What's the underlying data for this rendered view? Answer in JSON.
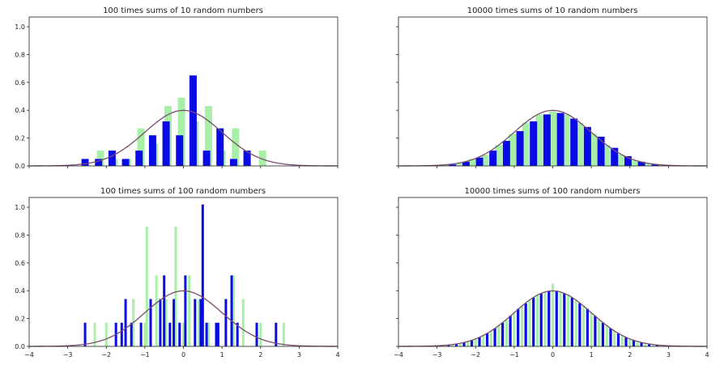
{
  "chart_data": [
    {
      "type": "bar",
      "title": "100 times sums of 10 random numbers",
      "xlabel": "",
      "ylabel": "",
      "xlim": [
        -4,
        4
      ],
      "ylim": [
        0,
        1.07
      ],
      "xticks": [
        -4,
        -3,
        -2,
        -1,
        0,
        1,
        2,
        3,
        4
      ],
      "yticks": [
        "0.0",
        "0.2",
        "0.4",
        "0.6",
        "0.8",
        "1.0"
      ],
      "show_x_ticklabels": false,
      "show_y_ticklabels": true,
      "grid": false,
      "colors": {
        "histogram_a": "#a8f0a8",
        "histogram_b": "#0a0ae6",
        "curve": "#7a4d6e"
      },
      "series": [
        {
          "x": [
            -2.5,
            -2.15,
            -1.8,
            -1.45,
            -1.1,
            -0.75,
            -0.4,
            -0.05,
            0.3,
            0.65,
            1.0,
            1.35,
            1.7,
            2.05
          ],
          "values": [
            0,
            0.11,
            0.05,
            0.05,
            0.27,
            0.16,
            0.43,
            0.49,
            0.32,
            0.43,
            0.11,
            0.27,
            0,
            0.11
          ]
        },
        {
          "x": [
            -2.55,
            -2.2,
            -1.85,
            -1.5,
            -1.15,
            -0.8,
            -0.45,
            -0.1,
            0.25,
            0.6,
            0.95,
            1.3,
            1.65,
            2.0
          ],
          "values": [
            0.05,
            0.05,
            0.11,
            0.05,
            0.11,
            0.22,
            0.32,
            0.22,
            0.65,
            0.11,
            0.27,
            0.05,
            0.11,
            0
          ]
        }
      ],
      "curve": {
        "type": "normal_pdf",
        "mean": 0,
        "sd": 1
      }
    },
    {
      "type": "bar",
      "title": "10000 times sums of 10 random numbers",
      "xlabel": "",
      "ylabel": "",
      "xlim": [
        -4,
        4
      ],
      "ylim": [
        0,
        1.07
      ],
      "xticks": [
        -4,
        -3,
        -2,
        -1,
        0,
        1,
        2,
        3,
        4
      ],
      "yticks": [
        "0.0",
        "0.2",
        "0.4",
        "0.6",
        "0.8",
        "1.0"
      ],
      "show_x_ticklabels": false,
      "show_y_ticklabels": false,
      "grid": false,
      "colors": {
        "histogram_a": "#a8f0a8",
        "histogram_b": "#0a0ae6",
        "curve": "#7a4d6e"
      },
      "series": [
        {
          "x": [
            -2.8,
            -2.45,
            -2.1,
            -1.75,
            -1.4,
            -1.05,
            -0.7,
            -0.35,
            0.0,
            0.35,
            0.7,
            1.05,
            1.4,
            1.75,
            2.1,
            2.45,
            2.8
          ],
          "values": [
            0.01,
            0.02,
            0.05,
            0.08,
            0.15,
            0.23,
            0.31,
            0.37,
            0.39,
            0.37,
            0.31,
            0.23,
            0.15,
            0.08,
            0.04,
            0.02,
            0.01
          ]
        },
        {
          "x": [
            -2.6,
            -2.25,
            -1.9,
            -1.55,
            -1.2,
            -0.85,
            -0.5,
            -0.15,
            0.2,
            0.55,
            0.9,
            1.25,
            1.6,
            1.95,
            2.3,
            2.65,
            3.0
          ],
          "values": [
            0.01,
            0.03,
            0.06,
            0.11,
            0.18,
            0.25,
            0.32,
            0.37,
            0.38,
            0.34,
            0.28,
            0.21,
            0.13,
            0.07,
            0.03,
            0.01,
            0.005
          ]
        }
      ],
      "curve": {
        "type": "normal_pdf",
        "mean": 0,
        "sd": 1
      }
    },
    {
      "type": "bar",
      "title": "100 times sums of 100 random numbers",
      "xlabel": "",
      "ylabel": "",
      "xlim": [
        -4,
        4
      ],
      "ylim": [
        0,
        1.07
      ],
      "xticks": [
        -4,
        -3,
        -2,
        -1,
        0,
        1,
        2,
        3,
        4
      ],
      "xticklabels": [
        "−4",
        "−3",
        "−2",
        "−1",
        "0",
        "1",
        "2",
        "3",
        "4"
      ],
      "yticks": [
        "0.0",
        "0.2",
        "0.4",
        "0.6",
        "0.8",
        "1.0"
      ],
      "show_x_ticklabels": true,
      "show_y_ticklabels": true,
      "grid": false,
      "colors": {
        "histogram_a": "#a8f0a8",
        "histogram_b": "#0a0ae6",
        "curve": "#7a4d6e"
      },
      "series": [
        {
          "x": [
            -2.3,
            -2.0,
            -1.5,
            -1.3,
            -1.0,
            -0.95,
            -0.7,
            -0.45,
            -0.2,
            0.0,
            0.15,
            0.4,
            0.65,
            0.9,
            1.1,
            1.3,
            1.55,
            2.0,
            2.6
          ],
          "values": [
            0.17,
            0.17,
            0.17,
            0.34,
            0.17,
            0.86,
            0.51,
            0.34,
            0.86,
            0.17,
            0.51,
            0.34,
            0.17,
            0.17,
            0.17,
            0.51,
            0.34,
            0.17,
            0.17
          ]
        },
        {
          "x": [
            -2.55,
            -1.75,
            -1.6,
            -1.5,
            -1.35,
            -1.1,
            -0.85,
            -0.6,
            -0.5,
            -0.35,
            -0.25,
            -0.1,
            0.05,
            0.3,
            0.45,
            0.5,
            0.6,
            0.85,
            0.9,
            1.1,
            1.25,
            1.4,
            1.9,
            2.4
          ],
          "values": [
            0.17,
            0.17,
            0.17,
            0.34,
            0.17,
            0.17,
            0.34,
            0.34,
            0.51,
            0.17,
            0.34,
            0.17,
            0.51,
            0.34,
            0.34,
            1.02,
            0.17,
            0.17,
            0.17,
            0.34,
            0.51,
            0.17,
            0.17,
            0.17
          ]
        }
      ],
      "curve": {
        "type": "normal_pdf",
        "mean": 0,
        "sd": 1
      }
    },
    {
      "type": "bar",
      "title": "10000 times sums of 100 random numbers",
      "xlabel": "",
      "ylabel": "",
      "xlim": [
        -4,
        4
      ],
      "ylim": [
        0,
        1.07
      ],
      "xticks": [
        -4,
        -3,
        -2,
        -1,
        0,
        1,
        2,
        3,
        4
      ],
      "xticklabels": [
        "−4",
        "−3",
        "−2",
        "−1",
        "0",
        "1",
        "2",
        "3",
        "4"
      ],
      "yticks": [
        "0.0",
        "0.2",
        "0.4",
        "0.6",
        "0.8",
        "1.0"
      ],
      "show_x_ticklabels": true,
      "show_y_ticklabels": false,
      "grid": false,
      "colors": {
        "histogram_a": "#a8f0a8",
        "histogram_b": "#0a0ae6",
        "curve": "#7a4d6e"
      },
      "series": [
        {
          "x": [
            -3.0,
            -2.8,
            -2.6,
            -2.4,
            -2.2,
            -2.0,
            -1.8,
            -1.6,
            -1.4,
            -1.2,
            -1.0,
            -0.8,
            -0.6,
            -0.4,
            -0.2,
            0.0,
            0.2,
            0.4,
            0.6,
            0.8,
            1.0,
            1.2,
            1.4,
            1.6,
            1.8,
            2.0,
            2.2,
            2.4,
            2.6,
            2.8,
            3.0
          ],
          "values": [
            0.005,
            0.01,
            0.015,
            0.02,
            0.035,
            0.055,
            0.08,
            0.11,
            0.15,
            0.19,
            0.24,
            0.29,
            0.33,
            0.37,
            0.39,
            0.45,
            0.39,
            0.37,
            0.33,
            0.29,
            0.24,
            0.19,
            0.15,
            0.11,
            0.08,
            0.055,
            0.035,
            0.02,
            0.015,
            0.01,
            0.005
          ]
        },
        {
          "x": [
            -2.9,
            -2.7,
            -2.5,
            -2.3,
            -2.1,
            -1.9,
            -1.7,
            -1.5,
            -1.3,
            -1.1,
            -0.9,
            -0.7,
            -0.5,
            -0.3,
            -0.1,
            0.1,
            0.3,
            0.5,
            0.7,
            0.9,
            1.1,
            1.3,
            1.5,
            1.7,
            1.9,
            2.1,
            2.3,
            2.5,
            2.7,
            2.9
          ],
          "values": [
            0.006,
            0.01,
            0.018,
            0.028,
            0.045,
            0.066,
            0.095,
            0.13,
            0.17,
            0.22,
            0.27,
            0.31,
            0.35,
            0.38,
            0.4,
            0.4,
            0.38,
            0.35,
            0.31,
            0.27,
            0.22,
            0.17,
            0.13,
            0.095,
            0.066,
            0.045,
            0.028,
            0.018,
            0.01,
            0.006
          ]
        }
      ],
      "curve": {
        "type": "normal_pdf",
        "mean": 0,
        "sd": 1
      }
    }
  ]
}
